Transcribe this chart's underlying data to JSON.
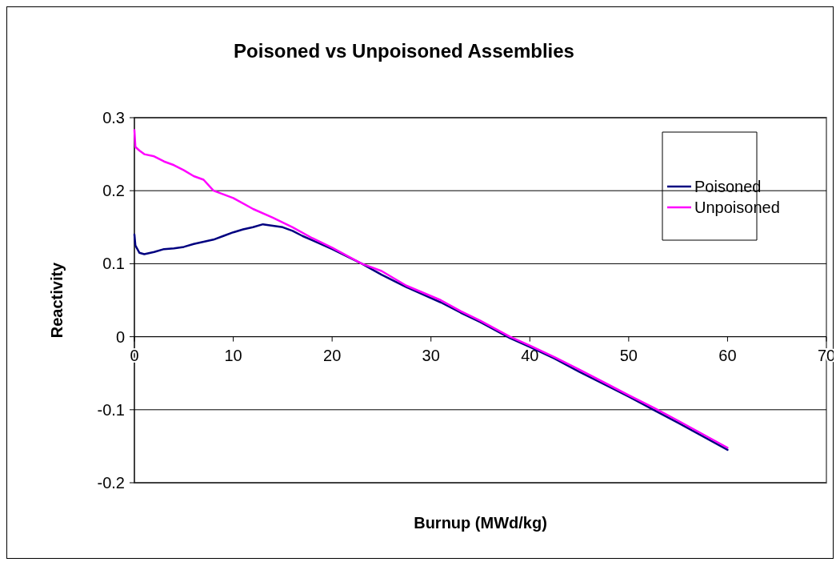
{
  "chart_data": {
    "type": "line",
    "title": "Poisoned vs Unpoisoned Assemblies",
    "xlabel": "Burnup (MWd/kg)",
    "ylabel": "Reactivity",
    "xlim": [
      0,
      70
    ],
    "xticks": [
      0,
      10,
      20,
      30,
      40,
      50,
      60,
      70
    ],
    "ylim": [
      -0.2,
      0.3
    ],
    "yticks": [
      -0.2,
      -0.1,
      0,
      0.1,
      0.2,
      0.3
    ],
    "grid": "y",
    "legend": "right",
    "marker": "none",
    "line_style": "solid",
    "series": [
      {
        "name": "Poisoned",
        "color": "#000080",
        "x": [
          0,
          0.1,
          0.5,
          1,
          2,
          3,
          4,
          5,
          6,
          7,
          8,
          9,
          10,
          11,
          12,
          13,
          14,
          15,
          16,
          17,
          18,
          20,
          23,
          25,
          27.5,
          31,
          33,
          35,
          38,
          40,
          42.5,
          45,
          50,
          52.5,
          55,
          60
        ],
        "values": [
          0.14,
          0.125,
          0.115,
          0.113,
          0.116,
          0.12,
          0.121,
          0.123,
          0.127,
          0.13,
          0.133,
          0.138,
          0.143,
          0.147,
          0.15,
          0.154,
          0.152,
          0.15,
          0.145,
          0.138,
          0.132,
          0.12,
          0.1,
          0.085,
          0.068,
          0.047,
          0.033,
          0.02,
          -0.002,
          -0.014,
          -0.03,
          -0.048,
          -0.082,
          -0.1,
          -0.118,
          -0.155
        ]
      },
      {
        "name": "Unpoisoned",
        "color": "#ff00ff",
        "x": [
          0,
          0.1,
          0.5,
          1,
          2,
          3,
          4,
          5,
          6,
          7,
          8,
          10,
          12,
          14,
          16,
          18,
          20,
          23,
          25,
          27.5,
          31,
          33,
          35,
          38,
          40,
          42.5,
          45,
          50,
          52.5,
          55,
          60
        ],
        "values": [
          0.283,
          0.26,
          0.255,
          0.25,
          0.247,
          0.24,
          0.235,
          0.228,
          0.22,
          0.215,
          0.2,
          0.19,
          0.175,
          0.163,
          0.15,
          0.135,
          0.122,
          0.1,
          0.09,
          0.07,
          0.05,
          0.035,
          0.022,
          0,
          -0.012,
          -0.028,
          -0.045,
          -0.08,
          -0.097,
          -0.115,
          -0.152
        ]
      }
    ]
  }
}
